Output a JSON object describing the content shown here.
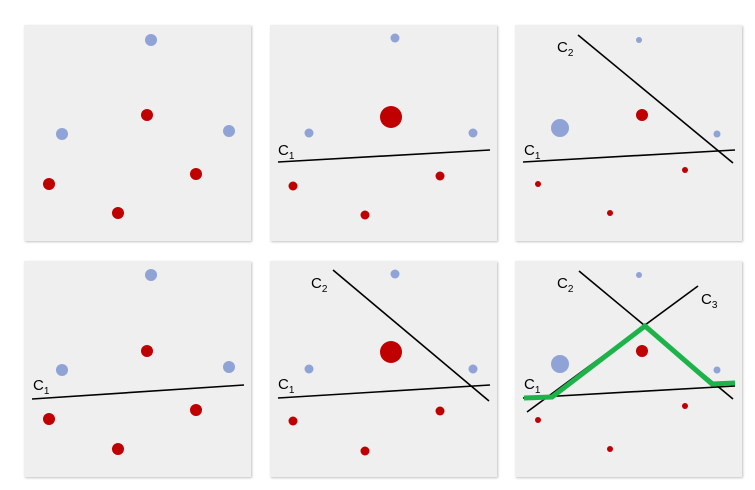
{
  "colors": {
    "panel_background": "#efefef",
    "blue_point": "#8fa3d6",
    "red_point": "#c00000",
    "classifier_line": "#000000",
    "combined_boundary": "#1db34a"
  },
  "labels": {
    "c1": {
      "letter": "C",
      "sub": "1"
    },
    "c2": {
      "letter": "C",
      "sub": "2"
    },
    "c3": {
      "letter": "C",
      "sub": "3"
    }
  }
}
